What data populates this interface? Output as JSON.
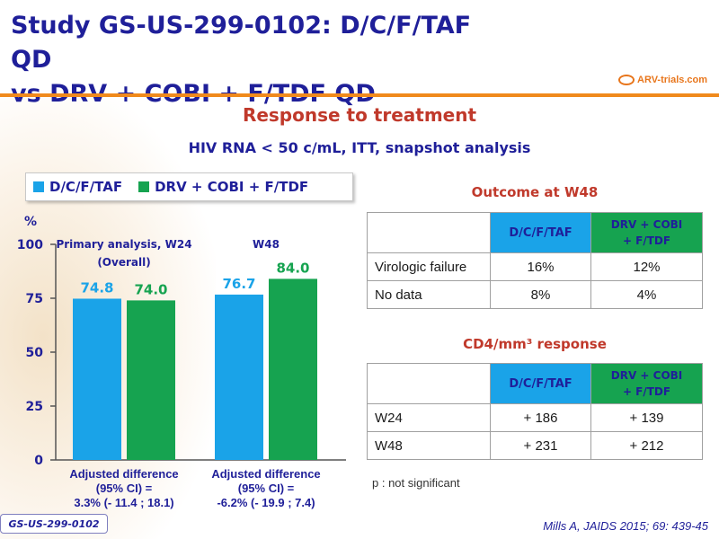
{
  "title": {
    "line1": "Study GS-US-299-0102: D/C/F/TAF QD",
    "line2": "vs DRV + COBI + F/TDF QD"
  },
  "logo": {
    "text": "ARV-trials.com"
  },
  "section": {
    "title": "Response to treatment",
    "subtitle": "HIV RNA < 50 c/mL, ITT, snapshot analysis"
  },
  "legend": [
    {
      "label": "D/C/F/TAF",
      "color": "#1aa3e8"
    },
    {
      "label": "DRV + COBI + F/TDF",
      "color": "#16a350"
    }
  ],
  "chart_data": {
    "type": "bar",
    "ylabel": "%",
    "ylim": [
      0,
      100
    ],
    "yticks": [
      0,
      25,
      50,
      75,
      100
    ],
    "grid": false,
    "legend_position": "top",
    "groups": [
      {
        "label_line1": "Primary analysis, W24",
        "label_line2": "(Overall)",
        "values": [
          74.8,
          74.0
        ],
        "value_labels": [
          "74.8",
          "74.0"
        ],
        "caption": [
          "Adjusted difference",
          "(95% CI) =",
          "3.3% (- 11.4 ; 18.1)"
        ]
      },
      {
        "label_line1": "W48",
        "label_line2": "",
        "values": [
          76.7,
          84.0
        ],
        "value_labels": [
          "76.7",
          "84.0"
        ],
        "caption": [
          "Adjusted difference",
          "(95% CI) =",
          "-6.2% (- 19.9 ; 7.4)"
        ]
      }
    ],
    "series": [
      {
        "name": "D/C/F/TAF",
        "color": "#1aa3e8"
      },
      {
        "name": "DRV + COBI + F/TDF",
        "color": "#16a350"
      }
    ]
  },
  "outcome": {
    "title": "Outcome at W48",
    "headers": [
      "D/C/F/TAF",
      "DRV + COBI",
      "+ F/TDF"
    ],
    "rows": [
      {
        "label": "Virologic failure",
        "a": "16%",
        "b": "12%"
      },
      {
        "label": "No data",
        "a": "8%",
        "b": "4%"
      }
    ]
  },
  "cd4": {
    "title": "CD4/mm³ response",
    "headers": [
      "D/C/F/TAF",
      "DRV + COBI",
      "+ F/TDF"
    ],
    "rows": [
      {
        "label": "W24",
        "a": "+ 186",
        "b": "+ 139"
      },
      {
        "label": "W48",
        "a": "+ 231",
        "b": "+ 212"
      }
    ]
  },
  "note": "p : not significant",
  "footer": {
    "badge": "GS-US-299-0102",
    "citation": "Mills A, JAIDS 2015; 69: 439-45"
  }
}
